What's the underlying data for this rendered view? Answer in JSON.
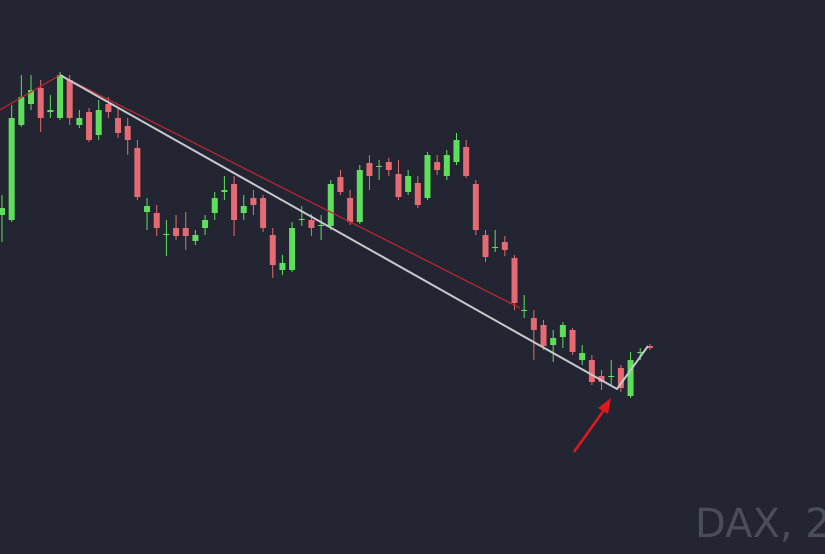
{
  "chart_data": {
    "type": "candlestick",
    "watermark": "DAX, 2",
    "up_color": "#5ddf5b",
    "down_color": "#e66a72",
    "ylim": [
      0,
      554
    ],
    "open": [
      339,
      334,
      429,
      450,
      466,
      442,
      436,
      474,
      429,
      442,
      419,
      450,
      436,
      428,
      406,
      342,
      341,
      319,
      326,
      326,
      313,
      326,
      341,
      362,
      370,
      341,
      356,
      356,
      319,
      284,
      284,
      334,
      334,
      328,
      328,
      377,
      356,
      332,
      391,
      387,
      392,
      380,
      362,
      371,
      356,
      392,
      378,
      392,
      407,
      370,
      319,
      306,
      312,
      296,
      243,
      236,
      229,
      209,
      217,
      224,
      194,
      194,
      178,
      177,
      186,
      158,
      201,
      208
    ],
    "high": [
      359,
      449,
      479,
      479,
      474,
      459,
      482,
      479,
      444,
      446,
      454,
      457,
      446,
      436,
      414,
      356,
      349,
      334,
      339,
      342,
      324,
      339,
      362,
      378,
      378,
      359,
      364,
      359,
      326,
      299,
      332,
      348,
      340,
      339,
      374,
      384,
      364,
      389,
      399,
      394,
      396,
      394,
      384,
      378,
      402,
      399,
      404,
      421,
      414,
      374,
      324,
      324,
      318,
      299,
      259,
      244,
      234,
      224,
      232,
      226,
      209,
      199,
      184,
      194,
      189,
      202,
      206,
      210
    ],
    "low": [
      312,
      332,
      427,
      444,
      422,
      436,
      434,
      429,
      426,
      412,
      414,
      436,
      416,
      399,
      354,
      324,
      318,
      298,
      314,
      304,
      309,
      319,
      334,
      354,
      318,
      334,
      339,
      322,
      276,
      279,
      282,
      328,
      318,
      314,
      324,
      359,
      329,
      330,
      364,
      374,
      378,
      354,
      359,
      346,
      354,
      379,
      374,
      389,
      376,
      319,
      292,
      302,
      298,
      244,
      236,
      194,
      204,
      192,
      206,
      199,
      189,
      169,
      164,
      169,
      162,
      156,
      194,
      204
    ],
    "close": [
      346,
      436,
      457,
      464,
      436,
      444,
      479,
      436,
      436,
      414,
      444,
      442,
      421,
      414,
      357,
      348,
      326,
      320,
      318,
      318,
      319,
      334,
      356,
      364,
      334,
      348,
      349,
      326,
      289,
      291,
      326,
      335,
      326,
      329,
      370,
      362,
      332,
      384,
      378,
      388,
      384,
      357,
      378,
      349,
      399,
      384,
      399,
      414,
      378,
      324,
      297,
      307,
      304,
      251,
      244,
      224,
      208,
      216,
      229,
      202,
      201,
      172,
      172,
      178,
      166,
      194,
      202,
      206
    ]
  }
}
